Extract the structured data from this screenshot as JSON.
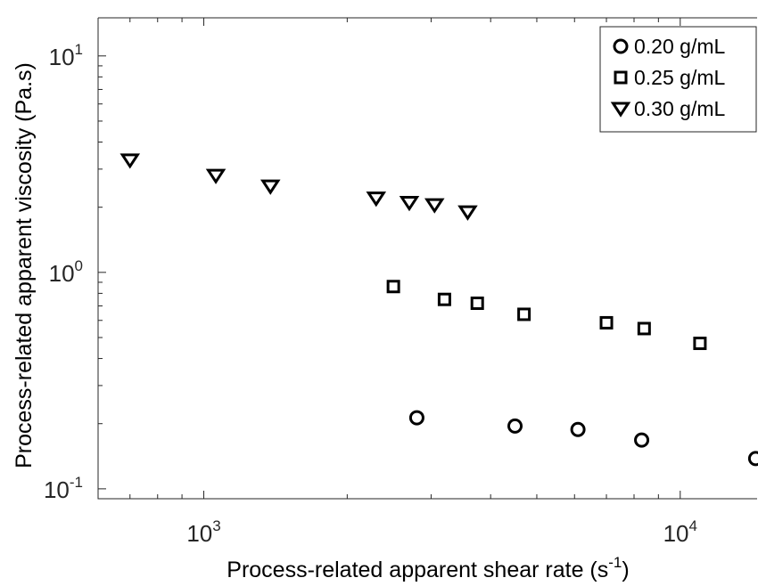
{
  "chart_data": {
    "type": "scatter",
    "title": "",
    "xlabel": "Process-related apparent shear rate (s",
    "xlabel_sup": "-1",
    "xlabel_end": ")",
    "ylabel": "Process-related apparent viscosity (Pa.s)",
    "xscale": "log",
    "yscale": "log",
    "xlim": [
      600,
      14500
    ],
    "ylim": [
      0.09,
      15
    ],
    "x_ticks": [
      {
        "value": 1000,
        "base": "10",
        "exp": "3"
      },
      {
        "value": 10000,
        "base": "10",
        "exp": "4"
      }
    ],
    "y_ticks": [
      {
        "value": 0.1,
        "base": "10",
        "exp": "-1"
      },
      {
        "value": 1,
        "base": "10",
        "exp": "0"
      },
      {
        "value": 10,
        "base": "10",
        "exp": "1"
      }
    ],
    "grid": false,
    "legend_position": "top-right",
    "series": [
      {
        "name": "0.20 g/mL",
        "marker": "circle",
        "points": [
          [
            2800,
            0.213
          ],
          [
            4500,
            0.195
          ],
          [
            6100,
            0.188
          ],
          [
            8300,
            0.168
          ],
          [
            14400,
            0.138
          ]
        ]
      },
      {
        "name": "0.25 g/mL",
        "marker": "square",
        "points": [
          [
            2500,
            0.86
          ],
          [
            3200,
            0.75
          ],
          [
            3750,
            0.72
          ],
          [
            4700,
            0.64
          ],
          [
            7000,
            0.585
          ],
          [
            8400,
            0.55
          ],
          [
            11000,
            0.47
          ]
        ]
      },
      {
        "name": "0.30 g/mL",
        "marker": "triangle-down",
        "points": [
          [
            700,
            3.3
          ],
          [
            1060,
            2.8
          ],
          [
            1380,
            2.5
          ],
          [
            2300,
            2.2
          ],
          [
            2700,
            2.1
          ],
          [
            3050,
            2.05
          ],
          [
            3580,
            1.9
          ]
        ]
      }
    ]
  }
}
